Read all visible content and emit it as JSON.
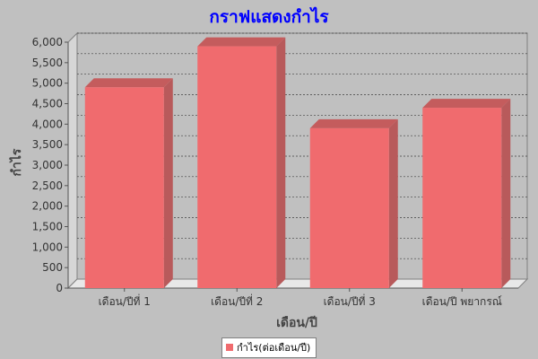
{
  "chart_data": {
    "type": "bar",
    "title": "กราฟแสดงกำไร",
    "xlabel": "เดือน/ปี",
    "ylabel": "กำไร",
    "categories": [
      "เดือน/ปีที่ 1",
      "เดือน/ปีที่ 2",
      "เดือน/ปีที่ 3",
      "เดือน/ปี พยากรณ์"
    ],
    "series": [
      {
        "name": "กำไร(ต่อเดือน/ปี)",
        "values": [
          4900,
          5900,
          3900,
          4400
        ]
      }
    ],
    "ylim": [
      0,
      6000
    ],
    "yticks": [
      "0",
      "500",
      "1,000",
      "1,500",
      "2,000",
      "2,500",
      "3,000",
      "3,500",
      "4,000",
      "4,500",
      "5,000",
      "5,500",
      "6,000"
    ],
    "grid": true,
    "legend_position": "bottom",
    "colors": {
      "bar": "#f06b6e",
      "bar_side": "#b85a5b",
      "bar_top": "#c45c5d",
      "title": "#0000ff",
      "background": "#c0c0c0"
    }
  }
}
